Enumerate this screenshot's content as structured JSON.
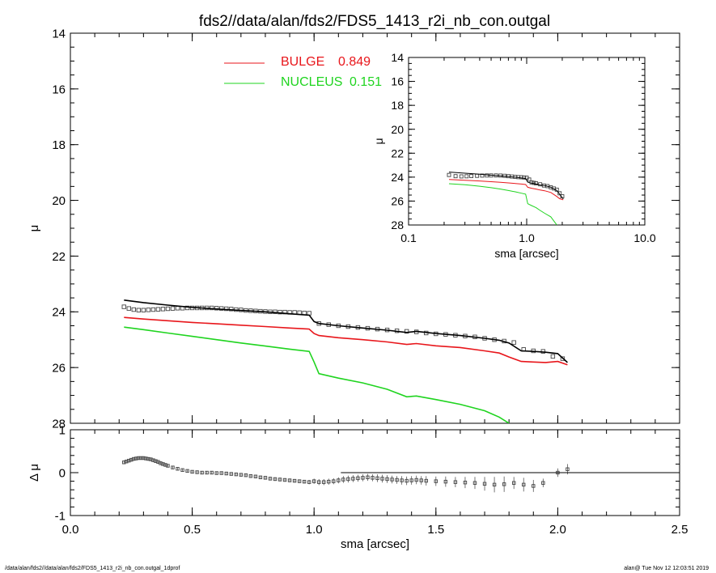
{
  "chart_data": [
    {
      "type": "scatter",
      "panel": "main",
      "title": "fds2//data/alan/fds2/FDS5_1413_r2i_nb_con.outgal",
      "xlabel": "",
      "ylabel": "μ",
      "xlim": [
        0.0,
        2.5
      ],
      "ylim": [
        28,
        14
      ],
      "y_inverted": true,
      "xticks": [
        "0.0",
        "0.5",
        "1.0",
        "1.5",
        "2.0",
        "2.5"
      ],
      "yticks": [
        "14",
        "16",
        "18",
        "20",
        "22",
        "24",
        "26",
        "28"
      ],
      "grid": false,
      "legend_position": "top-center",
      "legend": [
        {
          "name": "BULGE",
          "value": "0.849",
          "color": "#e8161b"
        },
        {
          "name": "NUCLEUS",
          "value": "0.151",
          "color": "#1fd41f"
        }
      ],
      "series": [
        {
          "name": "data",
          "kind": "squares",
          "color": "#444444",
          "x": [
            0.22,
            0.24,
            0.26,
            0.28,
            0.3,
            0.32,
            0.34,
            0.36,
            0.38,
            0.4,
            0.42,
            0.44,
            0.46,
            0.48,
            0.5,
            0.52,
            0.54,
            0.56,
            0.58,
            0.6,
            0.62,
            0.64,
            0.66,
            0.68,
            0.7,
            0.72,
            0.74,
            0.76,
            0.78,
            0.8,
            0.82,
            0.84,
            0.86,
            0.88,
            0.9,
            0.92,
            0.94,
            0.96,
            0.98,
            1.02,
            1.06,
            1.1,
            1.14,
            1.18,
            1.22,
            1.26,
            1.3,
            1.34,
            1.38,
            1.42,
            1.46,
            1.5,
            1.54,
            1.58,
            1.62,
            1.66,
            1.7,
            1.74,
            1.78,
            1.82,
            1.86,
            1.9,
            1.94,
            1.98,
            2.02
          ],
          "y": [
            23.82,
            23.88,
            23.92,
            23.94,
            23.94,
            23.93,
            23.92,
            23.91,
            23.9,
            23.89,
            23.88,
            23.87,
            23.87,
            23.86,
            23.86,
            23.86,
            23.86,
            23.86,
            23.86,
            23.87,
            23.88,
            23.89,
            23.9,
            23.92,
            23.93,
            23.95,
            23.96,
            23.97,
            23.98,
            23.99,
            24.0,
            24.0,
            24.01,
            24.01,
            24.02,
            24.02,
            24.03,
            24.04,
            24.05,
            24.42,
            24.46,
            24.5,
            24.53,
            24.56,
            24.59,
            24.62,
            24.65,
            24.68,
            24.7,
            24.72,
            24.76,
            24.79,
            24.81,
            24.84,
            24.87,
            24.9,
            24.95,
            25.0,
            25.05,
            25.1,
            25.35,
            25.4,
            25.42,
            25.6,
            25.68
          ]
        },
        {
          "name": "model",
          "kind": "line",
          "color": "#000000",
          "x": [
            0.22,
            0.3,
            0.4,
            0.5,
            0.6,
            0.7,
            0.8,
            0.9,
            0.98,
            1.0,
            1.02,
            1.1,
            1.2,
            1.3,
            1.38,
            1.42,
            1.5,
            1.6,
            1.7,
            1.76,
            1.8,
            1.85,
            1.9,
            1.95,
            2.0,
            2.04
          ],
          "y": [
            23.58,
            23.67,
            23.76,
            23.84,
            23.9,
            23.95,
            24.0,
            24.07,
            24.12,
            24.35,
            24.42,
            24.5,
            24.58,
            24.66,
            24.74,
            24.7,
            24.78,
            24.85,
            24.95,
            25.02,
            25.12,
            25.4,
            25.42,
            25.45,
            25.5,
            25.82
          ]
        },
        {
          "name": "BULGE",
          "kind": "line",
          "color": "#e8161b",
          "x": [
            0.22,
            0.3,
            0.4,
            0.5,
            0.6,
            0.7,
            0.8,
            0.9,
            0.98,
            1.0,
            1.02,
            1.1,
            1.2,
            1.3,
            1.38,
            1.42,
            1.5,
            1.6,
            1.7,
            1.76,
            1.8,
            1.85,
            1.9,
            1.95,
            2.0,
            2.04
          ],
          "y": [
            24.2,
            24.26,
            24.32,
            24.38,
            24.43,
            24.48,
            24.53,
            24.58,
            24.62,
            24.78,
            24.85,
            24.93,
            25.0,
            25.08,
            25.17,
            25.14,
            25.22,
            25.28,
            25.4,
            25.48,
            25.62,
            25.78,
            25.8,
            25.82,
            25.78,
            25.9
          ]
        },
        {
          "name": "NUCLEUS",
          "kind": "line",
          "color": "#1fd41f",
          "x": [
            0.22,
            0.3,
            0.4,
            0.5,
            0.6,
            0.7,
            0.8,
            0.9,
            0.98,
            1.0,
            1.02,
            1.1,
            1.2,
            1.3,
            1.38,
            1.42,
            1.5,
            1.6,
            1.7,
            1.76,
            1.8
          ],
          "y": [
            24.55,
            24.64,
            24.76,
            24.88,
            25.0,
            25.12,
            25.23,
            25.34,
            25.42,
            25.8,
            26.22,
            26.38,
            26.55,
            26.78,
            27.05,
            27.02,
            27.15,
            27.32,
            27.55,
            27.78,
            28.0
          ]
        }
      ]
    },
    {
      "type": "scatter",
      "panel": "residual",
      "xlabel": "sma [arcsec]",
      "ylabel": "Δ μ",
      "xlim": [
        0.0,
        2.5
      ],
      "ylim": [
        -1,
        1
      ],
      "xticks": [
        "0.0",
        "0.5",
        "1.0",
        "1.5",
        "2.0",
        "2.5"
      ],
      "yticks": [
        "1",
        "0",
        "-1"
      ],
      "grid": false,
      "series": [
        {
          "name": "residuals",
          "kind": "squares_with_errorbars",
          "color": "#444444",
          "x": [
            0.22,
            0.23,
            0.24,
            0.25,
            0.26,
            0.27,
            0.28,
            0.29,
            0.3,
            0.31,
            0.32,
            0.33,
            0.34,
            0.35,
            0.36,
            0.37,
            0.38,
            0.39,
            0.4,
            0.42,
            0.44,
            0.46,
            0.48,
            0.5,
            0.52,
            0.54,
            0.56,
            0.58,
            0.6,
            0.62,
            0.64,
            0.66,
            0.68,
            0.7,
            0.72,
            0.74,
            0.76,
            0.78,
            0.8,
            0.82,
            0.84,
            0.86,
            0.88,
            0.9,
            0.92,
            0.94,
            0.96,
            0.98,
            1.0,
            1.02,
            1.04,
            1.06,
            1.08,
            1.1,
            1.12,
            1.14,
            1.16,
            1.18,
            1.2,
            1.22,
            1.24,
            1.26,
            1.28,
            1.3,
            1.32,
            1.34,
            1.36,
            1.38,
            1.4,
            1.42,
            1.44,
            1.46,
            1.5,
            1.54,
            1.58,
            1.62,
            1.66,
            1.7,
            1.74,
            1.78,
            1.82,
            1.86,
            1.9,
            1.94,
            2.0,
            2.04
          ],
          "y": [
            0.24,
            0.26,
            0.28,
            0.3,
            0.32,
            0.33,
            0.34,
            0.34,
            0.34,
            0.33,
            0.32,
            0.31,
            0.29,
            0.27,
            0.25,
            0.22,
            0.2,
            0.18,
            0.16,
            0.12,
            0.09,
            0.06,
            0.04,
            0.02,
            0.01,
            0.0,
            0.0,
            0.0,
            -0.01,
            -0.01,
            -0.02,
            -0.03,
            -0.04,
            -0.05,
            -0.06,
            -0.08,
            -0.09,
            -0.11,
            -0.12,
            -0.14,
            -0.15,
            -0.16,
            -0.17,
            -0.18,
            -0.19,
            -0.2,
            -0.21,
            -0.22,
            -0.2,
            -0.22,
            -0.22,
            -0.21,
            -0.2,
            -0.18,
            -0.16,
            -0.15,
            -0.14,
            -0.13,
            -0.12,
            -0.11,
            -0.12,
            -0.13,
            -0.14,
            -0.15,
            -0.16,
            -0.17,
            -0.18,
            -0.19,
            -0.18,
            -0.17,
            -0.18,
            -0.19,
            -0.2,
            -0.21,
            -0.22,
            -0.23,
            -0.24,
            -0.26,
            -0.28,
            -0.27,
            -0.24,
            -0.28,
            -0.31,
            -0.24,
            0.0,
            0.08
          ],
          "err": [
            0.03,
            0.03,
            0.03,
            0.04,
            0.04,
            0.04,
            0.04,
            0.04,
            0.04,
            0.04,
            0.04,
            0.04,
            0.04,
            0.04,
            0.04,
            0.04,
            0.03,
            0.03,
            0.03,
            0.03,
            0.03,
            0.03,
            0.03,
            0.03,
            0.03,
            0.03,
            0.03,
            0.03,
            0.03,
            0.03,
            0.03,
            0.03,
            0.03,
            0.03,
            0.03,
            0.03,
            0.03,
            0.03,
            0.03,
            0.04,
            0.04,
            0.04,
            0.04,
            0.04,
            0.04,
            0.04,
            0.04,
            0.05,
            0.06,
            0.07,
            0.07,
            0.07,
            0.07,
            0.07,
            0.08,
            0.08,
            0.08,
            0.08,
            0.08,
            0.08,
            0.08,
            0.09,
            0.09,
            0.09,
            0.09,
            0.09,
            0.1,
            0.1,
            0.1,
            0.1,
            0.1,
            0.11,
            0.11,
            0.12,
            0.12,
            0.13,
            0.14,
            0.16,
            0.18,
            0.18,
            0.14,
            0.16,
            0.14,
            0.1,
            0.1,
            0.12
          ]
        },
        {
          "name": "zero",
          "kind": "line",
          "color": "#000000",
          "x": [
            1.11,
            2.5
          ],
          "y": [
            0,
            0
          ]
        }
      ]
    },
    {
      "type": "line",
      "panel": "inset",
      "xlabel": "sma [arcsec]",
      "ylabel": "μ",
      "xscale": "log",
      "xlim": [
        0.1,
        10.0
      ],
      "ylim": [
        28,
        14
      ],
      "y_inverted": true,
      "xticks": [
        "0.1",
        "1.0",
        "10.0"
      ],
      "yticks": [
        "14",
        "16",
        "18",
        "20",
        "22",
        "24",
        "26",
        "28"
      ],
      "grid": false,
      "series": [
        {
          "name": "data",
          "kind": "squares",
          "color": "#444444",
          "x": [
            0.22,
            0.25,
            0.28,
            0.31,
            0.34,
            0.38,
            0.42,
            0.46,
            0.5,
            0.55,
            0.6,
            0.65,
            0.7,
            0.75,
            0.8,
            0.85,
            0.9,
            0.95,
            1.0,
            1.05,
            1.1,
            1.15,
            1.2,
            1.3,
            1.4,
            1.5,
            1.6,
            1.7,
            1.8,
            1.9,
            2.0
          ],
          "y": [
            23.82,
            23.92,
            23.94,
            23.93,
            23.91,
            23.89,
            23.87,
            23.86,
            23.86,
            23.86,
            23.87,
            23.89,
            23.92,
            23.95,
            23.98,
            24.0,
            24.01,
            24.03,
            24.05,
            24.2,
            24.44,
            24.48,
            24.52,
            24.6,
            24.7,
            24.75,
            24.85,
            24.95,
            25.05,
            25.35,
            25.6
          ]
        },
        {
          "name": "model",
          "kind": "line",
          "color": "#000000",
          "x": [
            0.22,
            0.3,
            0.4,
            0.5,
            0.6,
            0.7,
            0.8,
            0.9,
            0.98,
            1.02,
            1.1,
            1.2,
            1.3,
            1.42,
            1.6,
            1.8,
            1.9,
            2.04
          ],
          "y": [
            23.58,
            23.67,
            23.76,
            23.84,
            23.9,
            23.95,
            24.0,
            24.07,
            24.12,
            24.42,
            24.5,
            24.58,
            24.66,
            24.7,
            24.85,
            25.12,
            25.42,
            25.82
          ]
        },
        {
          "name": "BULGE",
          "kind": "line",
          "color": "#e8161b",
          "x": [
            0.22,
            0.3,
            0.4,
            0.5,
            0.6,
            0.7,
            0.8,
            0.9,
            0.98,
            1.02,
            1.1,
            1.2,
            1.3,
            1.42,
            1.6,
            1.8,
            1.9,
            2.04
          ],
          "y": [
            24.2,
            24.26,
            24.32,
            24.38,
            24.43,
            24.48,
            24.53,
            24.58,
            24.62,
            24.85,
            24.93,
            25.0,
            25.08,
            25.14,
            25.28,
            25.62,
            25.8,
            25.9
          ]
        },
        {
          "name": "NUCLEUS",
          "kind": "line",
          "color": "#1fd41f",
          "x": [
            0.22,
            0.3,
            0.4,
            0.5,
            0.6,
            0.7,
            0.8,
            0.9,
            0.98,
            1.02,
            1.1,
            1.2,
            1.3,
            1.42,
            1.6,
            1.8
          ],
          "y": [
            24.55,
            24.64,
            24.76,
            24.88,
            25.0,
            25.12,
            25.23,
            25.34,
            25.42,
            26.22,
            26.38,
            26.55,
            26.78,
            27.02,
            27.32,
            28.0
          ]
        }
      ]
    }
  ],
  "footer": {
    "left": "/data/alan/fds2//data/alan/fds2/FDS5_1413_r2i_nb_con.outgal_1dprof",
    "right": "alan@  Tue Nov 12 12:03:51 2019"
  }
}
